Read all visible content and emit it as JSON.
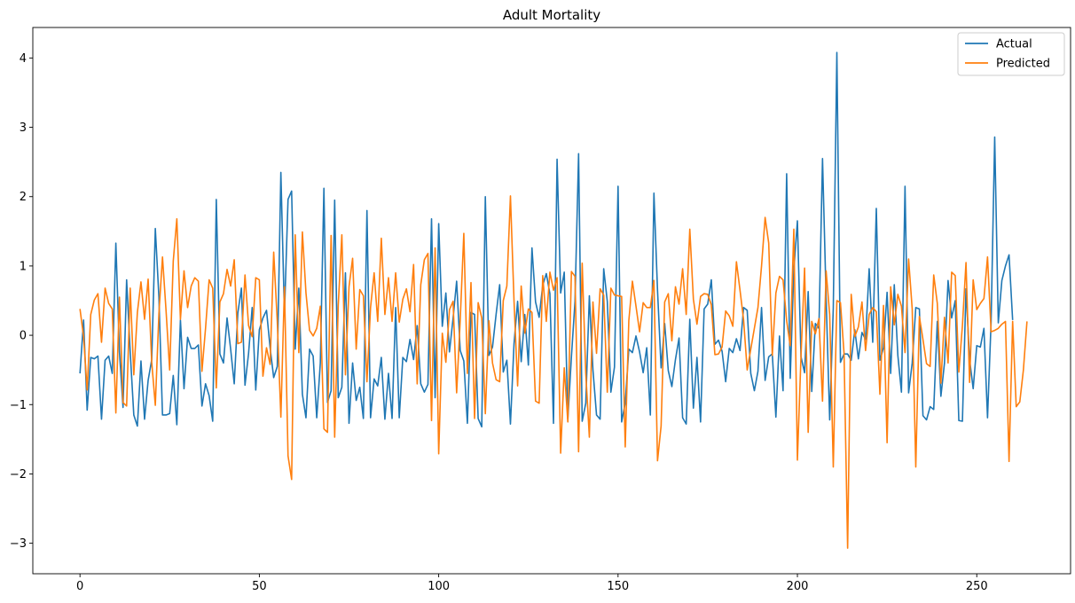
{
  "chart_data": {
    "type": "line",
    "title": "Adult Mortality",
    "xlabel": "",
    "ylabel": "",
    "xlim": [
      -13.15,
      276.15
    ],
    "ylim": [
      -3.44,
      4.44
    ],
    "xticks": [
      0,
      50,
      100,
      150,
      200,
      250
    ],
    "yticks": [
      -3,
      -2,
      -1,
      0,
      1,
      2,
      3,
      4
    ],
    "ytick_labels": [
      "−3",
      "−2",
      "−1",
      "0",
      "1",
      "2",
      "3",
      "4"
    ],
    "grid": false,
    "legend_position": "top-right",
    "colors": {
      "actual": "#1f77b4",
      "predicted": "#ff7f0e"
    },
    "x": {
      "start": 0,
      "step": 1,
      "count": 264
    },
    "series": [
      {
        "name": "Actual",
        "values": [
          -0.55,
          0.22,
          -1.08,
          -0.32,
          -0.34,
          -0.3,
          -1.21,
          -0.36,
          -0.3,
          -0.55,
          1.33,
          -0.24,
          -1.04,
          0.8,
          -0.24,
          -1.15,
          -1.31,
          -0.37,
          -1.21,
          -0.65,
          -0.35,
          1.54,
          0.55,
          -1.15,
          -1.15,
          -1.13,
          -0.58,
          -1.29,
          0.22,
          -0.77,
          -0.03,
          -0.19,
          -0.19,
          -0.14,
          -1.02,
          -0.7,
          -0.87,
          -1.24,
          1.96,
          -0.27,
          -0.4,
          0.25,
          -0.2,
          -0.7,
          0.32,
          0.68,
          -0.72,
          -0.26,
          0.4,
          -0.79,
          0.08,
          0.25,
          0.36,
          -0.18,
          -0.61,
          -0.45,
          2.35,
          0.3,
          1.96,
          2.08,
          -0.2,
          0.68,
          -0.85,
          -1.19,
          -0.2,
          -0.3,
          -1.19,
          -0.4,
          2.12,
          -0.97,
          -0.8,
          1.95,
          -0.9,
          -0.75,
          0.9,
          -1.27,
          -0.4,
          -0.94,
          -0.75,
          -1.2,
          1.8,
          -1.19,
          -0.63,
          -0.73,
          -0.32,
          -1.21,
          -0.55,
          -1.2,
          0.4,
          -1.19,
          -0.32,
          -0.38,
          -0.06,
          -0.35,
          0.14,
          -0.7,
          -0.82,
          -0.71,
          1.68,
          -0.9,
          1.61,
          0.13,
          0.61,
          -0.24,
          0.24,
          0.78,
          -0.22,
          -0.37,
          -1.27,
          0.33,
          0.3,
          -1.2,
          -1.32,
          2.0,
          -0.29,
          -0.17,
          0.3,
          0.73,
          -0.53,
          -0.36,
          -1.28,
          -0.12,
          0.49,
          -0.38,
          0.3,
          -0.43,
          1.26,
          0.48,
          0.26,
          0.72,
          0.89,
          0.6,
          -1.27,
          2.54,
          0.61,
          0.91,
          -1.21,
          -0.31,
          0.49,
          2.62,
          -1.24,
          -0.98,
          0.57,
          -0.5,
          -1.15,
          -1.21,
          0.96,
          0.49,
          -0.82,
          -0.46,
          2.15,
          -1.25,
          -0.98,
          -0.2,
          -0.25,
          -0.01,
          -0.24,
          -0.54,
          -0.18,
          -1.15,
          2.05,
          0.65,
          -0.47,
          0.17,
          -0.51,
          -0.74,
          -0.35,
          -0.04,
          -1.19,
          -1.28,
          0.23,
          -1.05,
          -0.32,
          -1.25,
          0.38,
          0.45,
          0.8,
          -0.13,
          -0.07,
          -0.23,
          -0.67,
          -0.19,
          -0.25,
          -0.05,
          -0.22,
          0.4,
          0.36,
          -0.55,
          -0.8,
          -0.52,
          0.4,
          -0.65,
          -0.31,
          -0.27,
          -1.18,
          -0.01,
          -0.8,
          2.33,
          -0.62,
          0.94,
          1.65,
          -0.31,
          -0.54,
          0.63,
          -0.81,
          0.17,
          0.1,
          2.55,
          0.54,
          -1.22,
          0.39,
          4.08,
          -0.39,
          -0.27,
          -0.27,
          -0.36,
          0.08,
          -0.34,
          0.04,
          -0.06,
          0.96,
          -0.1,
          1.83,
          -0.36,
          -0.18,
          0.62,
          -0.55,
          0.73,
          -0.29,
          -0.82,
          2.15,
          -0.83,
          -0.4,
          0.4,
          0.38,
          -1.16,
          -1.22,
          -1.03,
          -1.07,
          0.2,
          -0.88,
          -0.4,
          0.79,
          0.25,
          0.5,
          -1.23,
          -1.24,
          0.67,
          -0.35,
          -0.77,
          -0.15,
          -0.17,
          0.1,
          -1.19,
          0.2,
          2.86,
          0.18,
          0.79,
          1.0,
          1.16,
          0.22
        ]
      },
      {
        "name": "Predicted",
        "values": [
          0.38,
          -0.02,
          -0.79,
          0.3,
          0.51,
          0.6,
          -0.1,
          0.68,
          0.46,
          0.38,
          -1.12,
          0.55,
          -0.97,
          -1.02,
          0.68,
          -0.57,
          0.33,
          0.77,
          0.23,
          0.81,
          -0.39,
          -1.01,
          0.31,
          1.13,
          0.35,
          -0.5,
          1.07,
          1.68,
          0.23,
          0.93,
          0.4,
          0.71,
          0.83,
          0.78,
          -0.52,
          0.1,
          0.8,
          0.68,
          -0.76,
          0.48,
          0.6,
          0.95,
          0.71,
          1.09,
          -0.12,
          -0.1,
          0.87,
          0.14,
          -0.02,
          0.83,
          0.8,
          -0.59,
          -0.18,
          -0.42,
          1.2,
          0.2,
          -1.18,
          0.7,
          -1.74,
          -2.08,
          1.45,
          -0.25,
          1.49,
          0.61,
          0.07,
          -0.01,
          0.1,
          0.42,
          -1.35,
          -1.4,
          1.44,
          -1.47,
          0.44,
          1.45,
          -0.57,
          0.7,
          1.11,
          -0.2,
          0.66,
          0.57,
          -0.67,
          0.4,
          0.9,
          0.2,
          1.4,
          0.3,
          0.83,
          0.2,
          0.9,
          0.19,
          0.52,
          0.67,
          0.34,
          1.02,
          -0.7,
          0.73,
          1.09,
          1.18,
          -1.23,
          1.26,
          -1.71,
          0.03,
          -0.39,
          0.37,
          0.49,
          -0.83,
          0.22,
          1.47,
          -0.55,
          0.76,
          -1.2,
          0.47,
          0.25,
          -1.13,
          0.21,
          -0.4,
          -0.64,
          -0.67,
          0.5,
          0.71,
          2.01,
          0.49,
          -0.73,
          0.71,
          0.03,
          0.38,
          0.33,
          -0.95,
          -0.98,
          0.86,
          0.2,
          0.91,
          0.65,
          0.83,
          -1.7,
          -0.47,
          -1.25,
          0.92,
          0.85,
          -1.68,
          1.04,
          -0.55,
          -1.47,
          0.48,
          -0.26,
          0.67,
          0.58,
          -0.82,
          0.68,
          0.58,
          0.57,
          0.56,
          -1.61,
          0.21,
          0.78,
          0.42,
          0.05,
          0.47,
          0.4,
          0.4,
          0.79,
          -1.81,
          -1.31,
          0.48,
          0.6,
          -0.08,
          0.7,
          0.45,
          0.96,
          0.3,
          1.53,
          0.52,
          0.16,
          0.56,
          0.6,
          0.59,
          0.44,
          -0.28,
          -0.27,
          -0.17,
          0.35,
          0.28,
          0.13,
          1.06,
          0.65,
          0.22,
          -0.5,
          -0.2,
          0.1,
          0.4,
          1.0,
          1.7,
          1.33,
          -0.29,
          0.61,
          0.85,
          0.8,
          0.21,
          -0.15,
          1.53,
          -1.8,
          -0.3,
          0.97,
          -1.4,
          0.2,
          0.02,
          0.24,
          -0.95,
          0.93,
          0.3,
          -1.9,
          0.5,
          0.47,
          -0.26,
          -3.07,
          0.59,
          -0.02,
          0.12,
          0.48,
          -0.22,
          0.3,
          0.4,
          0.34,
          -0.85,
          0.43,
          -1.55,
          0.7,
          0.15,
          0.59,
          0.42,
          -0.25,
          1.1,
          0.38,
          -1.9,
          0.27,
          -0.06,
          -0.41,
          -0.45,
          0.87,
          0.46,
          -0.69,
          0.26,
          -0.4,
          0.91,
          0.86,
          -0.53,
          0.14,
          1.05,
          -0.68,
          0.8,
          0.37,
          0.46,
          0.53,
          1.13,
          0.05,
          0.07,
          0.1,
          0.16,
          0.2,
          -1.82,
          0.2,
          -1.03,
          -0.96,
          -0.5,
          0.2
        ]
      }
    ]
  }
}
